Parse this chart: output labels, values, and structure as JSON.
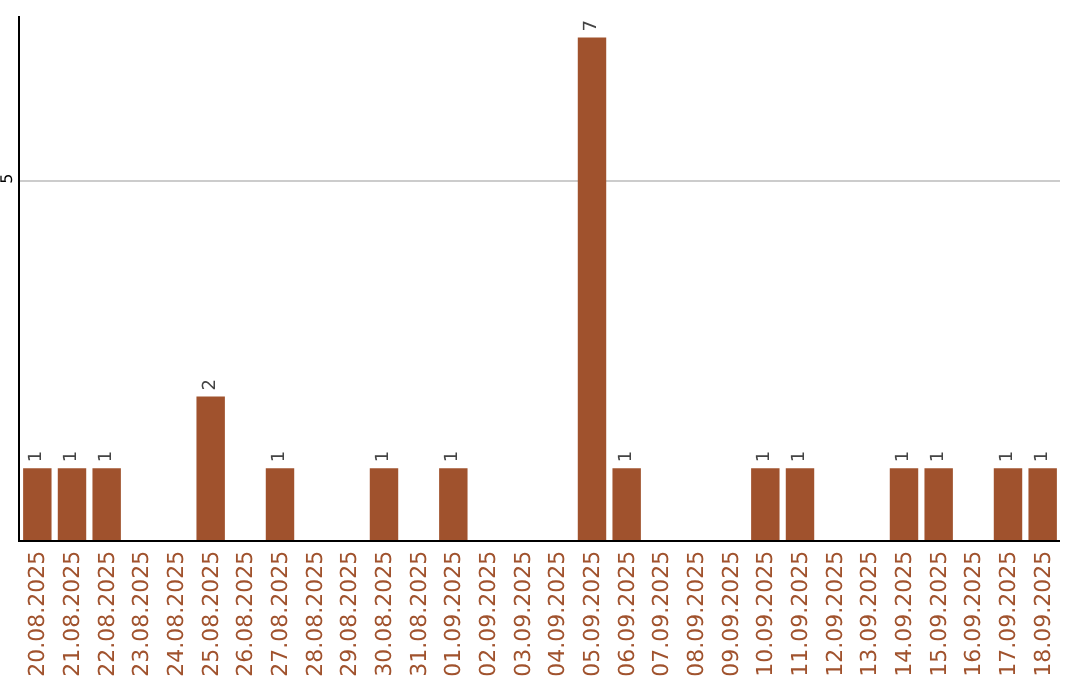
{
  "chart_data": {
    "type": "bar",
    "categories": [
      "20.08.2025",
      "21.08.2025",
      "22.08.2025",
      "23.08.2025",
      "24.08.2025",
      "25.08.2025",
      "26.08.2025",
      "27.08.2025",
      "28.08.2025",
      "29.08.2025",
      "30.08.2025",
      "31.08.2025",
      "01.09.2025",
      "02.09.2025",
      "03.09.2025",
      "04.09.2025",
      "05.09.2025",
      "06.09.2025",
      "07.09.2025",
      "08.09.2025",
      "09.09.2025",
      "10.09.2025",
      "11.09.2025",
      "12.09.2025",
      "13.09.2025",
      "14.09.2025",
      "15.09.2025",
      "16.09.2025",
      "17.09.2025",
      "18.09.2025"
    ],
    "values": [
      1,
      1,
      1,
      0,
      0,
      2,
      0,
      1,
      0,
      0,
      1,
      0,
      1,
      0,
      0,
      0,
      7,
      1,
      0,
      0,
      0,
      1,
      1,
      0,
      0,
      1,
      1,
      0,
      1,
      1
    ],
    "value_labels": [
      "1",
      "1",
      "1",
      null,
      null,
      "2",
      null,
      "1",
      null,
      null,
      "1",
      null,
      "1",
      null,
      null,
      null,
      "7",
      "1",
      null,
      null,
      null,
      "1",
      "1",
      null,
      null,
      "1",
      "1",
      null,
      "1",
      "1"
    ],
    "color": "#a0522d",
    "ylim": [
      0,
      7.3
    ],
    "yticks": [
      5
    ],
    "grid": "y"
  }
}
